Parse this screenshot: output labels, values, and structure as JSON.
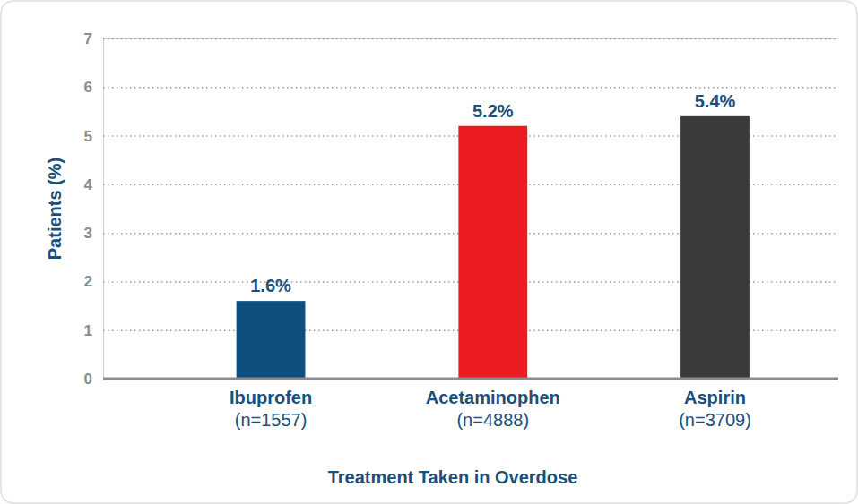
{
  "chart_data": {
    "type": "bar",
    "categories": [
      "Ibuprofen\n(n=1557)",
      "Acetaminophen\n(n=4888)",
      "Aspirin\n(n=3709)"
    ],
    "values": [
      1.6,
      5.2,
      5.4
    ],
    "value_labels": [
      "1.6%",
      "5.2%",
      "5.4%"
    ],
    "colors": [
      "#0f4f7f",
      "#ed1c24",
      "#3a3a3c"
    ],
    "xlabel": "Treatment Taken in Overdose",
    "ylabel": "Patients (%)",
    "ylim": [
      0,
      7
    ],
    "yticks": [
      0,
      1,
      2,
      3,
      4,
      5,
      6,
      7
    ],
    "grid": true,
    "data_labels": true
  }
}
